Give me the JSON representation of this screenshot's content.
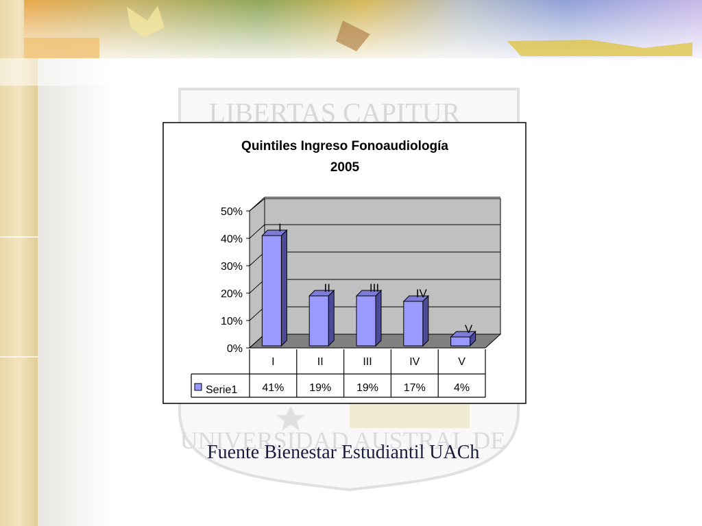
{
  "slide": {
    "watermark_motto": "LIBERTAS CAPITUR",
    "watermark_ring": "UNIVERSIDAD AUSTRAL DE",
    "source": "Fuente Bienestar Estudiantil UACh"
  },
  "colors": {
    "bar_face": "#9999ff",
    "bar_side": "#4b4b9a",
    "bar_top": "#7c7cd6",
    "plot_wall": "#c0c0c0",
    "plot_floor": "#808080",
    "text": "#000000"
  },
  "chart_data": {
    "type": "bar",
    "title": "Quintiles Ingreso Fonoaudiología",
    "subtitle": "2005",
    "categories": [
      "I",
      "II",
      "III",
      "IV",
      "V"
    ],
    "series": [
      {
        "name": "Serie1",
        "values": [
          41,
          19,
          19,
          17,
          4
        ],
        "data_labels": [
          "41%",
          "19%",
          "19%",
          "17%",
          "4%"
        ],
        "point_labels": [
          "I",
          "II",
          "III",
          "IV",
          "V"
        ]
      }
    ],
    "ylim": [
      0,
      50
    ],
    "y_ticks": [
      "0%",
      "10%",
      "20%",
      "30%",
      "40%",
      "50%"
    ],
    "grid": true,
    "three_d": true,
    "legend": "data-table"
  }
}
